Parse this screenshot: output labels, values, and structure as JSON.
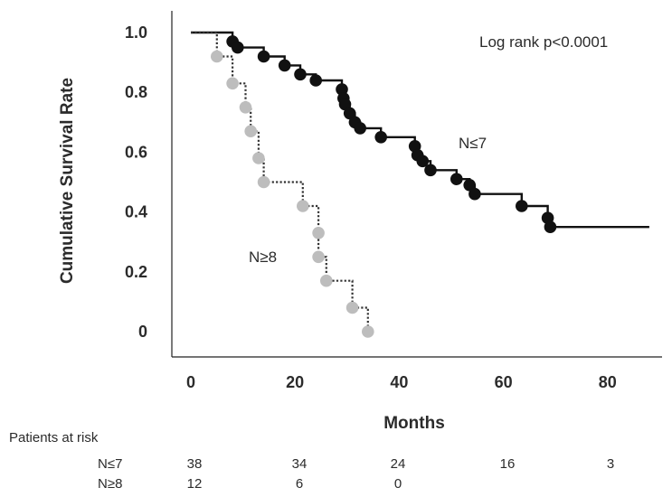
{
  "chart_data": {
    "type": "line",
    "title": "",
    "xlabel": "Months",
    "ylabel": "Cumulative Survival Rate",
    "xlim": [
      0,
      88
    ],
    "ylim": [
      0,
      1.0
    ],
    "x_ticks": [
      "0",
      "20",
      "40",
      "60",
      "80"
    ],
    "y_ticks": [
      "0",
      "0.2",
      "0.4",
      "0.6",
      "0.8",
      "1.0"
    ],
    "grid": false,
    "annotation": "Log rank p<0.0001",
    "series": [
      {
        "name": "N≤7",
        "line_style": "solid",
        "color": "#111111",
        "marker_color": "#111111",
        "steps": [
          [
            0,
            1.0
          ],
          [
            8,
            1.0
          ],
          [
            8,
            0.97
          ],
          [
            9,
            0.97
          ],
          [
            9,
            0.95
          ],
          [
            14,
            0.95
          ],
          [
            14,
            0.92
          ],
          [
            18,
            0.92
          ],
          [
            18,
            0.89
          ],
          [
            21,
            0.89
          ],
          [
            21,
            0.86
          ],
          [
            24,
            0.86
          ],
          [
            24,
            0.84
          ],
          [
            29,
            0.84
          ],
          [
            29,
            0.81
          ],
          [
            29.3,
            0.81
          ],
          [
            29.3,
            0.78
          ],
          [
            29.6,
            0.78
          ],
          [
            29.6,
            0.76
          ],
          [
            30.5,
            0.76
          ],
          [
            30.5,
            0.73
          ],
          [
            31.5,
            0.73
          ],
          [
            31.5,
            0.7
          ],
          [
            32.5,
            0.7
          ],
          [
            32.5,
            0.68
          ],
          [
            36.5,
            0.68
          ],
          [
            36.5,
            0.65
          ],
          [
            43,
            0.65
          ],
          [
            43,
            0.62
          ],
          [
            43.5,
            0.62
          ],
          [
            43.5,
            0.59
          ],
          [
            44.5,
            0.59
          ],
          [
            44.5,
            0.57
          ],
          [
            46,
            0.57
          ],
          [
            46,
            0.54
          ],
          [
            51,
            0.54
          ],
          [
            51,
            0.51
          ],
          [
            53.5,
            0.51
          ],
          [
            53.5,
            0.49
          ],
          [
            54.5,
            0.49
          ],
          [
            54.5,
            0.46
          ],
          [
            63.5,
            0.46
          ],
          [
            63.5,
            0.42
          ],
          [
            68.5,
            0.42
          ],
          [
            68.5,
            0.38
          ],
          [
            69,
            0.38
          ],
          [
            69,
            0.35
          ],
          [
            88,
            0.35
          ]
        ],
        "censored": [
          [
            8,
            0.97
          ],
          [
            9,
            0.95
          ],
          [
            14,
            0.92
          ],
          [
            18,
            0.89
          ],
          [
            21,
            0.86
          ],
          [
            24,
            0.84
          ],
          [
            29,
            0.81
          ],
          [
            29.3,
            0.78
          ],
          [
            29.6,
            0.76
          ],
          [
            30.5,
            0.73
          ],
          [
            31.5,
            0.7
          ],
          [
            32.5,
            0.68
          ],
          [
            36.5,
            0.65
          ],
          [
            43,
            0.62
          ],
          [
            43.5,
            0.59
          ],
          [
            44.5,
            0.57
          ],
          [
            46,
            0.54
          ],
          [
            51,
            0.51
          ],
          [
            53.5,
            0.49
          ],
          [
            54.5,
            0.46
          ],
          [
            63.5,
            0.42
          ],
          [
            68.5,
            0.38
          ],
          [
            69,
            0.35
          ]
        ]
      },
      {
        "name": "N≥8",
        "line_style": "dotted",
        "color": "#333333",
        "marker_color": "#bdbdbd",
        "steps": [
          [
            0,
            1.0
          ],
          [
            5,
            1.0
          ],
          [
            5,
            0.92
          ],
          [
            8,
            0.92
          ],
          [
            8,
            0.83
          ],
          [
            10.5,
            0.83
          ],
          [
            10.5,
            0.75
          ],
          [
            11.5,
            0.75
          ],
          [
            11.5,
            0.67
          ],
          [
            13,
            0.67
          ],
          [
            13,
            0.58
          ],
          [
            14,
            0.58
          ],
          [
            14,
            0.5
          ],
          [
            21.5,
            0.5
          ],
          [
            21.5,
            0.42
          ],
          [
            24.5,
            0.42
          ],
          [
            24.5,
            0.33
          ],
          [
            24.5,
            0.25
          ],
          [
            26,
            0.25
          ],
          [
            26,
            0.17
          ],
          [
            31,
            0.17
          ],
          [
            31,
            0.08
          ],
          [
            34,
            0.08
          ],
          [
            34,
            0.0
          ]
        ],
        "censored": [
          [
            5,
            0.92
          ],
          [
            8,
            0.83
          ],
          [
            10.5,
            0.75
          ],
          [
            11.5,
            0.67
          ],
          [
            13,
            0.58
          ],
          [
            14,
            0.5
          ],
          [
            21.5,
            0.42
          ],
          [
            24.5,
            0.33
          ],
          [
            24.5,
            0.25
          ],
          [
            26,
            0.17
          ],
          [
            31,
            0.08
          ],
          [
            34,
            0.0
          ]
        ]
      }
    ]
  },
  "risk_table": {
    "title": "Patients at risk",
    "rows": [
      {
        "label": "N≤7",
        "values": [
          "38",
          "34",
          "24",
          "16",
          "3"
        ]
      },
      {
        "label": "N≥8",
        "values": [
          "12",
          "6",
          "0",
          "",
          ""
        ]
      }
    ]
  }
}
